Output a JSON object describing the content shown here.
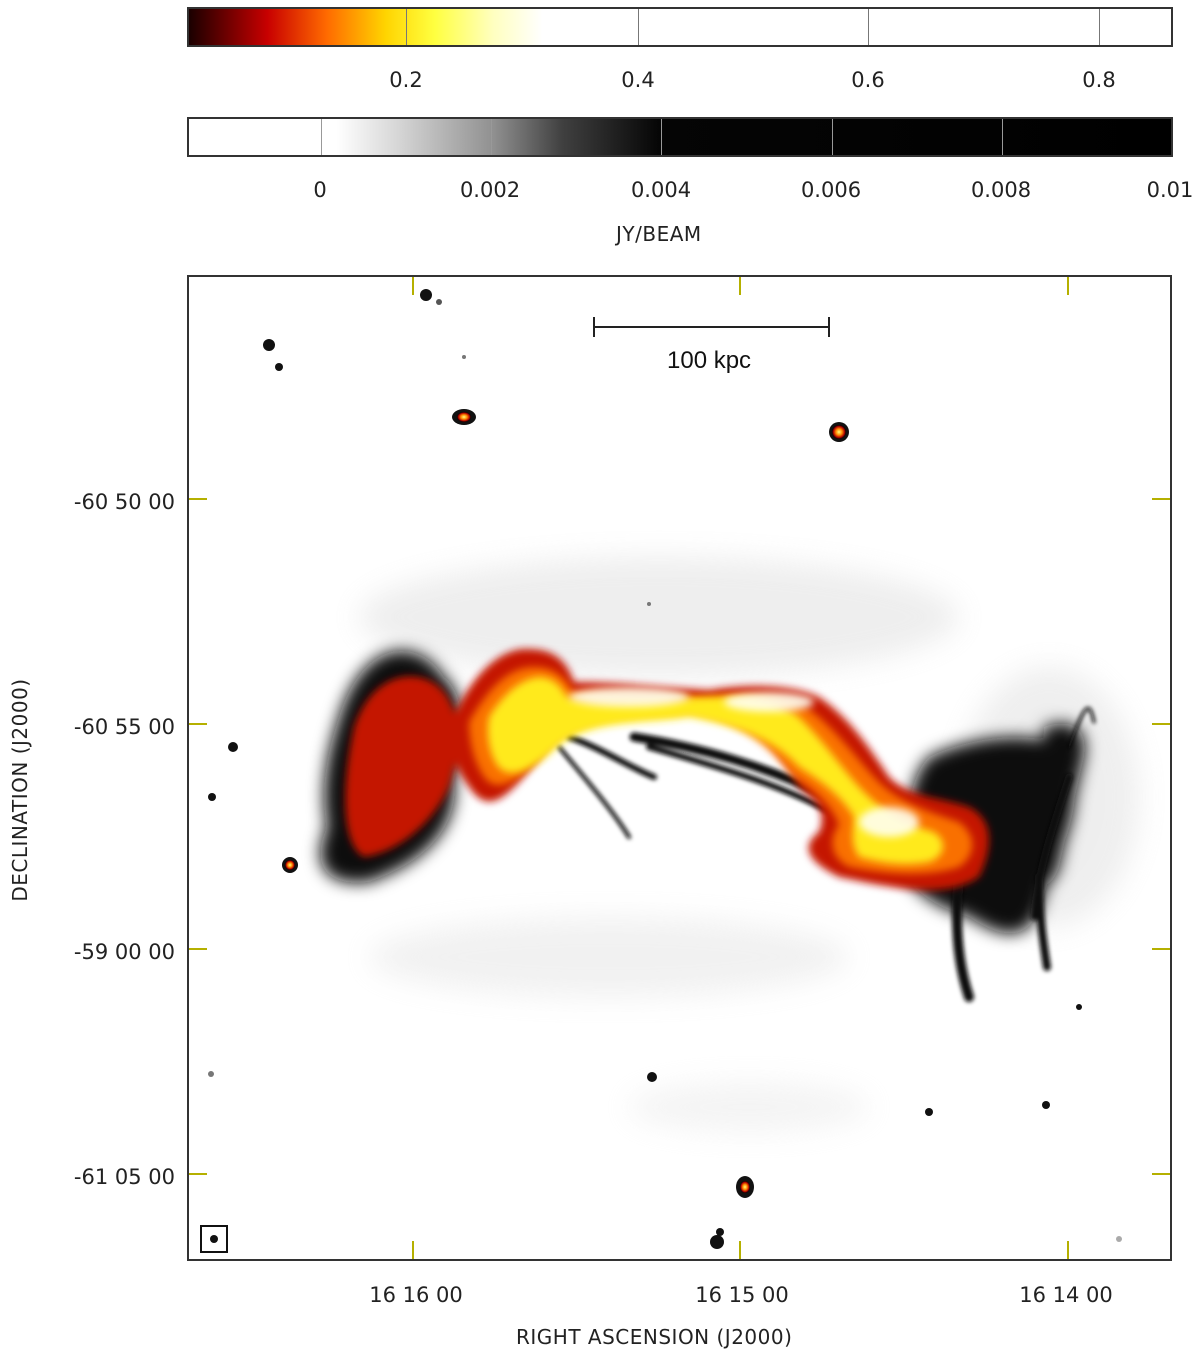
{
  "colorbar_heat": {
    "ticks": [
      "0.2",
      "0.4",
      "0.6",
      "0.8"
    ],
    "tick_values": [
      0.2,
      0.4,
      0.6,
      0.8
    ],
    "range": [
      0.01,
      0.86
    ],
    "colors": [
      "#000000",
      "#cc0000",
      "#ff6600",
      "#ffff00",
      "#ffffff"
    ]
  },
  "colorbar_gray": {
    "ticks": [
      "0",
      "0.002",
      "0.004",
      "0.006",
      "0.008",
      "0.01"
    ],
    "tick_values": [
      0,
      0.002,
      0.004,
      0.006,
      0.008,
      0.01
    ],
    "range": [
      -0.00155,
      0.01
    ],
    "unit_label": "JY/BEAM"
  },
  "scale_bar": {
    "label": "100 kpc"
  },
  "axes": {
    "y_title": "DECLINATION (J2000)",
    "x_title": "RIGHT ASCENSION (J2000)",
    "dec_ticks": [
      "-60 50 00",
      "-60 55 00",
      "-59 00 00",
      "-61 05 00"
    ],
    "ra_ticks": [
      "16 16 00",
      "16 15 00",
      "16 14 00"
    ]
  },
  "colors": {
    "axis_tick": "#b5b000",
    "frame": "#333333"
  }
}
